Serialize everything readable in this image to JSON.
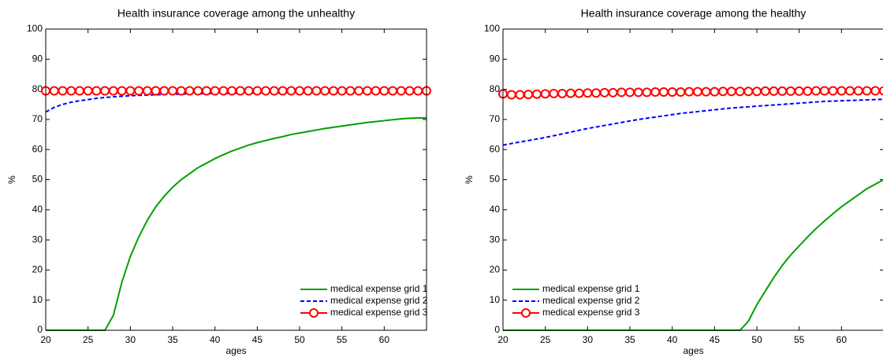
{
  "chart_data": [
    {
      "type": "line",
      "title": "Health insurance coverage among the unhealthy",
      "x_label": "ages",
      "y_label": "%",
      "x": [
        20,
        21,
        22,
        23,
        24,
        25,
        26,
        27,
        28,
        29,
        30,
        31,
        32,
        33,
        34,
        35,
        36,
        37,
        38,
        39,
        40,
        41,
        42,
        43,
        44,
        45,
        46,
        47,
        48,
        49,
        50,
        51,
        52,
        53,
        54,
        55,
        56,
        57,
        58,
        59,
        60,
        61,
        62,
        63,
        64,
        65
      ],
      "xlim": [
        20,
        65
      ],
      "xticks": [
        20,
        25,
        30,
        35,
        40,
        45,
        50,
        55,
        60
      ],
      "ylim": [
        0,
        100
      ],
      "yticks": [
        0,
        10,
        20,
        30,
        40,
        50,
        60,
        70,
        80,
        90,
        100
      ],
      "legend": "lower right",
      "series": [
        {
          "name": "medical expense grid 1",
          "color": "#00a000",
          "style": "solid",
          "values": [
            0,
            0,
            0,
            0,
            0,
            0,
            0,
            0,
            5,
            16,
            24.5,
            31,
            36.5,
            41,
            44.5,
            47.5,
            50,
            52,
            54,
            55.5,
            57,
            58.3,
            59.5,
            60.5,
            61.5,
            62.3,
            63,
            63.7,
            64.3,
            65,
            65.5,
            66,
            66.5,
            67,
            67.4,
            67.8,
            68.2,
            68.6,
            69,
            69.3,
            69.6,
            69.9,
            70.2,
            70.4,
            70.5,
            70.5
          ]
        },
        {
          "name": "medical expense grid 2",
          "color": "#0000ff",
          "style": "dashed",
          "values": [
            72.5,
            74,
            75,
            75.7,
            76.2,
            76.6,
            77,
            77.3,
            77.5,
            77.7,
            77.9,
            78,
            78.1,
            78.2,
            78.3,
            78.4,
            78.4,
            78.5,
            78.5,
            78.6,
            78.6,
            78.6,
            78.7,
            78.7,
            78.7,
            78.8,
            78.8,
            78.8,
            78.8,
            78.9,
            78.9,
            78.9,
            78.9,
            78.9,
            79,
            79,
            79,
            79,
            79,
            79,
            79,
            79.1,
            79.1,
            79.1,
            79.1,
            79.2
          ]
        },
        {
          "name": "medical expense grid 3",
          "color": "#ff0000",
          "style": "circles",
          "values": [
            79.5,
            79.5,
            79.5,
            79.5,
            79.5,
            79.5,
            79.5,
            79.5,
            79.5,
            79.5,
            79.5,
            79.5,
            79.5,
            79.5,
            79.5,
            79.5,
            79.5,
            79.5,
            79.5,
            79.5,
            79.5,
            79.5,
            79.5,
            79.5,
            79.5,
            79.5,
            79.5,
            79.5,
            79.5,
            79.5,
            79.5,
            79.5,
            79.5,
            79.5,
            79.5,
            79.5,
            79.5,
            79.5,
            79.5,
            79.5,
            79.5,
            79.5,
            79.5,
            79.5,
            79.5,
            79.5
          ]
        }
      ]
    },
    {
      "type": "line",
      "title": "Health insurance coverage among the healthy",
      "x_label": "ages",
      "y_label": "%",
      "x": [
        20,
        21,
        22,
        23,
        24,
        25,
        26,
        27,
        28,
        29,
        30,
        31,
        32,
        33,
        34,
        35,
        36,
        37,
        38,
        39,
        40,
        41,
        42,
        43,
        44,
        45,
        46,
        47,
        48,
        49,
        50,
        51,
        52,
        53,
        54,
        55,
        56,
        57,
        58,
        59,
        60,
        61,
        62,
        63,
        64,
        65
      ],
      "xlim": [
        20,
        65
      ],
      "xticks": [
        20,
        25,
        30,
        35,
        40,
        45,
        50,
        55,
        60
      ],
      "ylim": [
        0,
        100
      ],
      "yticks": [
        0,
        10,
        20,
        30,
        40,
        50,
        60,
        70,
        80,
        90,
        100
      ],
      "legend": "lower left",
      "series": [
        {
          "name": "medical expense grid 1",
          "color": "#00a000",
          "style": "solid",
          "values": [
            0,
            0,
            0,
            0,
            0,
            0,
            0,
            0,
            0,
            0,
            0,
            0,
            0,
            0,
            0,
            0,
            0,
            0,
            0,
            0,
            0,
            0,
            0,
            0,
            0,
            0,
            0,
            0,
            0,
            3,
            8.5,
            13,
            17.5,
            21.5,
            25,
            28,
            31,
            33.8,
            36.3,
            38.7,
            41,
            43,
            45,
            47,
            48.5,
            50
          ]
        },
        {
          "name": "medical expense grid 2",
          "color": "#0000ff",
          "style": "dashed",
          "values": [
            61.5,
            62,
            62.5,
            63,
            63.5,
            64,
            64.6,
            65.2,
            65.8,
            66.4,
            67,
            67.5,
            68,
            68.5,
            69,
            69.5,
            70,
            70.4,
            70.8,
            71.2,
            71.6,
            72,
            72.3,
            72.6,
            72.9,
            73.2,
            73.5,
            73.8,
            74,
            74.2,
            74.4,
            74.6,
            74.8,
            75,
            75.2,
            75.4,
            75.6,
            75.8,
            76,
            76.1,
            76.2,
            76.3,
            76.4,
            76.5,
            76.6,
            76.7
          ]
        },
        {
          "name": "medical expense grid 3",
          "color": "#ff0000",
          "style": "circles",
          "values": [
            78.5,
            78.2,
            78.2,
            78.3,
            78.4,
            78.5,
            78.6,
            78.6,
            78.7,
            78.7,
            78.8,
            78.8,
            78.9,
            78.9,
            79,
            79,
            79,
            79,
            79.1,
            79.1,
            79.1,
            79.1,
            79.2,
            79.2,
            79.2,
            79.2,
            79.3,
            79.3,
            79.3,
            79.3,
            79.3,
            79.4,
            79.4,
            79.4,
            79.4,
            79.4,
            79.4,
            79.5,
            79.5,
            79.5,
            79.5,
            79.5,
            79.5,
            79.5,
            79.5,
            79.5
          ]
        }
      ]
    }
  ]
}
